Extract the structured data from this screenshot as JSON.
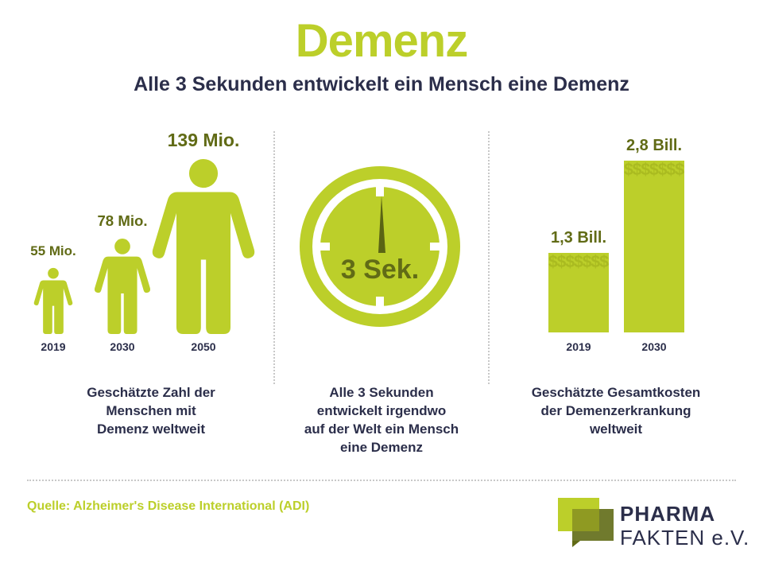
{
  "header": {
    "title": "Demenz",
    "subtitle": "Alle 3 Sekunden entwickelt ein Mensch eine Demenz"
  },
  "colors": {
    "accent": "#bccf2a",
    "dark_olive": "#616b16",
    "navy": "#2b2e4a"
  },
  "people_panel": {
    "caption": [
      "Geschätzte Zahl der",
      "Menschen mit",
      "Demenz weltweit"
    ]
  },
  "clock_panel": {
    "label": "3 Sek.",
    "caption": [
      "Alle 3 Sekunden",
      "entwickelt irgendwo",
      "auf der Welt ein Mensch",
      "eine Demenz"
    ]
  },
  "cost_panel": {
    "bar_pattern": "$$$$$$$$$$$$$$$$$$$$$$$$$$$$$$$$$$$$$$$$$$$$$$$$$$$$$$$$$$$$$$$$$$$$$$$$$$$$$$$$$$$$$$$$$$$$$$$$$$$$$$$$$$$$$$$$$$$$$$$$$$",
    "caption": [
      "Geschätzte Gesamtkosten",
      "der Demenzerkrankung",
      "weltweit"
    ]
  },
  "chart_data": [
    {
      "type": "bar",
      "categories": [
        "2019",
        "2030",
        "2050"
      ],
      "values": [
        55,
        78,
        139
      ],
      "value_labels": [
        "55 Mio.",
        "78 Mio.",
        "139 Mio."
      ],
      "unit": "Mio."
    },
    {
      "type": "bar",
      "categories": [
        "2019",
        "2030"
      ],
      "values": [
        1.3,
        2.8
      ],
      "value_labels": [
        "1,3 Bill.",
        "2,8 Bill."
      ],
      "unit": "Bill."
    }
  ],
  "footer": {
    "source": "Quelle: Alzheimer's Disease International (ADI)",
    "logo_line1": "PHARMA",
    "logo_line2": "FAKTEN e.V."
  }
}
